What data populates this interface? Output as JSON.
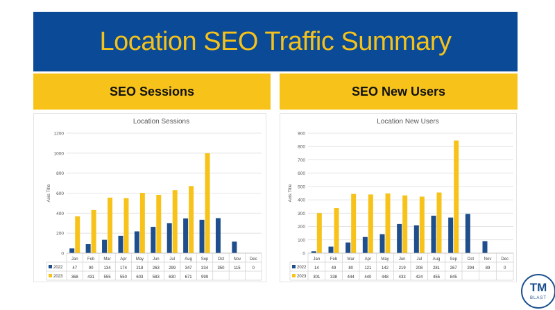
{
  "header": {
    "title": "Location SEO Traffic Summary"
  },
  "panels": [
    {
      "heading": "SEO Sessions"
    },
    {
      "heading": "SEO New Users"
    }
  ],
  "logo": {
    "mark": "TM",
    "word": "BLAST"
  },
  "colors": {
    "banner": "#0b4a96",
    "accent": "#f5c21b",
    "series2022": "#1f4e8c",
    "series2023": "#f7c31a"
  },
  "chart_data": [
    {
      "type": "bar",
      "title": "Location Sessions",
      "ylabel": "Axis Title",
      "xlabel": "",
      "ylim": [
        0,
        1200
      ],
      "yticks": [
        0,
        200,
        400,
        600,
        800,
        1000,
        1200
      ],
      "categories": [
        "Jan",
        "Feb",
        "Mar",
        "Apr",
        "May",
        "Jun",
        "Jul",
        "Aug",
        "Sep",
        "Oct",
        "Nov",
        "Dec"
      ],
      "series": [
        {
          "name": "2022",
          "values": [
            47,
            90,
            134,
            174,
            218,
            263,
            299,
            347,
            334,
            350,
            115,
            0
          ]
        },
        {
          "name": "2023",
          "values": [
            368,
            431,
            555,
            550,
            603,
            583,
            630,
            671,
            999,
            null,
            null,
            null
          ]
        }
      ],
      "grid": true,
      "legend": "data-table"
    },
    {
      "type": "bar",
      "title": "Location New Users",
      "ylabel": "Axis Title",
      "xlabel": "",
      "ylim": [
        0,
        900
      ],
      "yticks": [
        0,
        100,
        200,
        300,
        400,
        500,
        600,
        700,
        800,
        900
      ],
      "categories": [
        "Jan",
        "Feb",
        "Mar",
        "Apr",
        "May",
        "Jun",
        "Jul",
        "Aug",
        "Sep",
        "Oct",
        "Nov",
        "Dec"
      ],
      "series": [
        {
          "name": "2022",
          "values": [
            14,
            49,
            80,
            121,
            142,
            219,
            208,
            281,
            267,
            294,
            89,
            0
          ]
        },
        {
          "name": "2023",
          "values": [
            301,
            338,
            444,
            440,
            448,
            433,
            424,
            455,
            845,
            null,
            null,
            null
          ]
        }
      ],
      "grid": true,
      "legend": "data-table"
    }
  ]
}
